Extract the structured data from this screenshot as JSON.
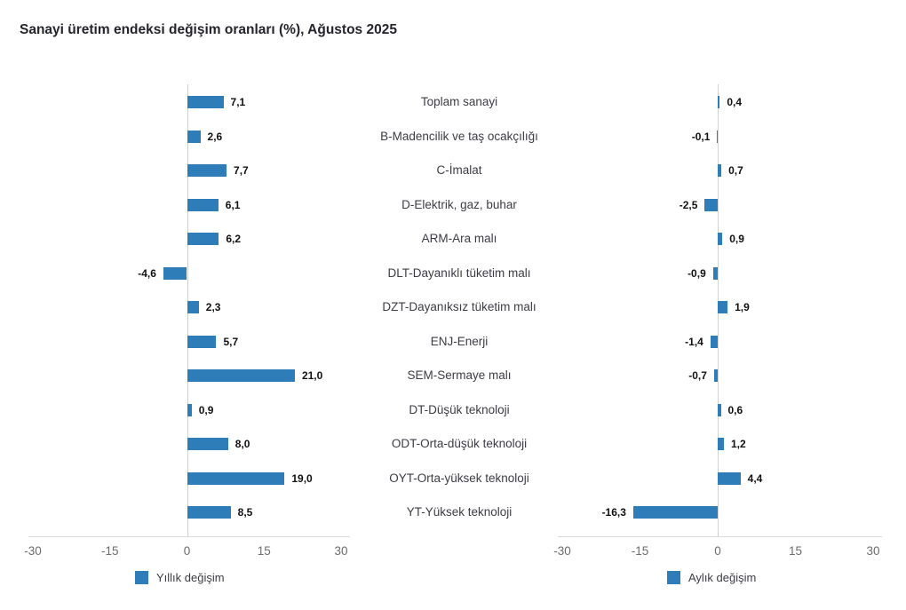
{
  "title": "Sanayi üretim endeksi değişim oranları (%), Ağustos 2025",
  "colors": {
    "bar": "#2e7db8",
    "title_text": "#24242c",
    "category_text": "#3c3c44",
    "value_text": "#111111",
    "tick_text": "#6b6b6b",
    "axis_line": "#d9d9d9",
    "zero_line": "#d0d0d0"
  },
  "chart_data": {
    "type": "bar",
    "orientation": "horizontal",
    "title": "Sanayi üretim endeksi değişim oranları (%), Ağustos 2025",
    "categories": [
      "Toplam sanayi",
      "B-Madencilik ve taş ocakçılığı",
      "C-İmalat",
      "D-Elektrik, gaz, buhar",
      "ARM-Ara malı",
      "DLT-Dayanıklı tüketim malı",
      "DZT-Dayanıksız tüketim malı",
      "ENJ-Enerji",
      "SEM-Sermaye malı",
      "DT-Düşük teknoloji",
      "ODT-Orta-düşük teknoloji",
      "OYT-Orta-yüksek teknoloji",
      "YT-Yüksek teknoloji"
    ],
    "series": [
      {
        "name": "Yıllık değişim",
        "values": [
          7.1,
          2.6,
          7.7,
          6.1,
          6.2,
          -4.6,
          2.3,
          5.7,
          21.0,
          0.9,
          8.0,
          19.0,
          8.5
        ]
      },
      {
        "name": "Aylık değişim",
        "values": [
          0.4,
          -0.1,
          0.7,
          -2.5,
          0.9,
          -0.9,
          1.9,
          -1.4,
          -0.7,
          0.6,
          1.2,
          4.4,
          -16.3
        ]
      }
    ],
    "xlim": [
      -30,
      30
    ],
    "xticks": [
      -30,
      -15,
      0,
      15,
      30
    ],
    "value_label_format": "comma_decimal_1",
    "legend_position": "bottom",
    "grid": false
  }
}
